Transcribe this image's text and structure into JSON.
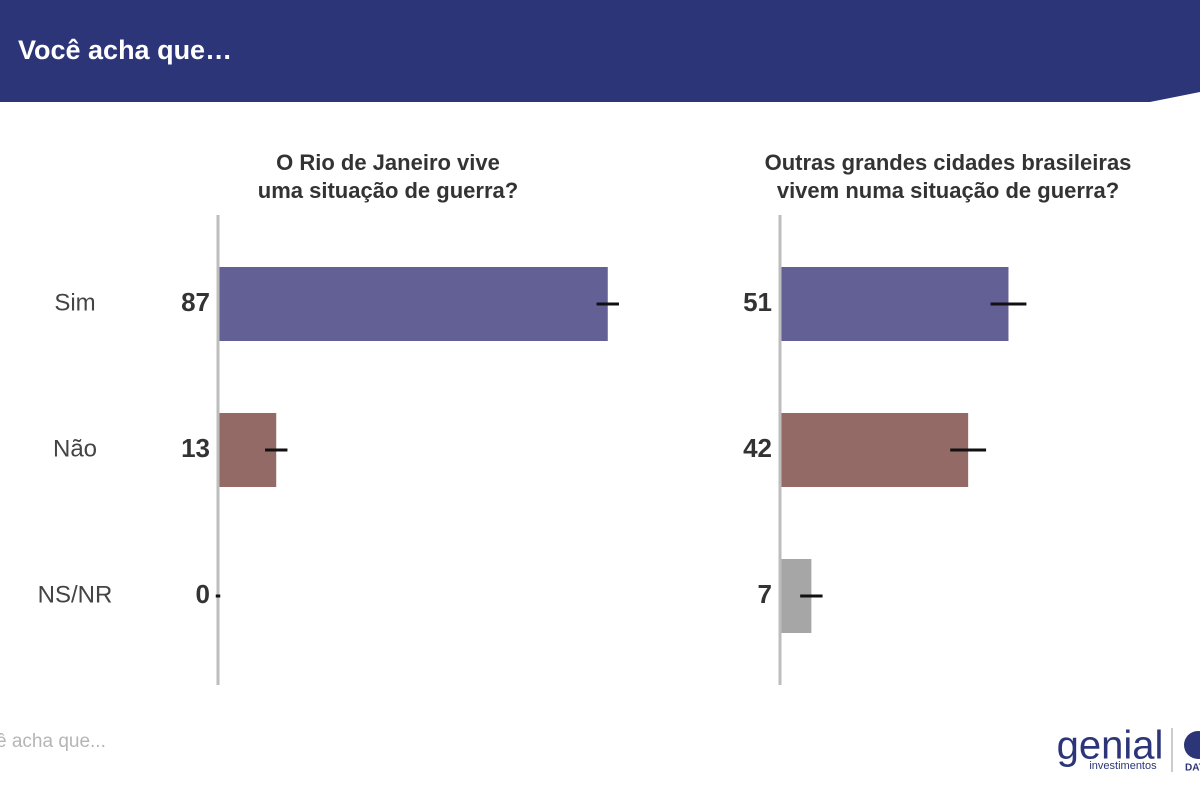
{
  "header": {
    "title": "Você acha que…"
  },
  "chart_data": [
    {
      "type": "bar",
      "orientation": "horizontal",
      "title": [
        "O Rio de Janeiro vive",
        "uma situação de guerra?"
      ],
      "categories": [
        "Sim",
        "Não",
        "NS/NR"
      ],
      "values": [
        87,
        13,
        0
      ],
      "errors": [
        2.5,
        2.5,
        0.5
      ],
      "colors": [
        "#636096",
        "#946a66",
        "#a6a6a6"
      ],
      "xlim": [
        0,
        100
      ]
    },
    {
      "type": "bar",
      "orientation": "horizontal",
      "title": [
        "Outras grandes cidades brasileiras",
        "vivem numa situação de guerra?"
      ],
      "values": [
        51,
        42,
        7
      ],
      "errors": [
        4,
        4,
        2.5
      ],
      "colors": [
        "#636096",
        "#946a66",
        "#a6a6a6"
      ],
      "xlim": [
        0,
        100
      ]
    }
  ],
  "footer": {
    "note": "ê acha que...",
    "logo": "genial",
    "logo_sub": "investimentos",
    "partner": "DAT"
  }
}
